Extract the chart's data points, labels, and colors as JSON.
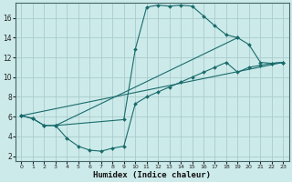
{
  "xlabel": "Humidex (Indice chaleur)",
  "bg_color": "#cceaea",
  "grid_color": "#aacccc",
  "line_color": "#1a6b6b",
  "xlim": [
    -0.5,
    23.5
  ],
  "ylim": [
    1.5,
    17.5
  ],
  "xticks": [
    0,
    1,
    2,
    3,
    4,
    5,
    6,
    7,
    8,
    9,
    10,
    11,
    12,
    13,
    14,
    15,
    16,
    17,
    18,
    19,
    20,
    21,
    22,
    23
  ],
  "yticks": [
    2,
    4,
    6,
    8,
    10,
    12,
    14,
    16
  ],
  "series": [
    {
      "x": [
        0,
        1,
        2,
        3,
        4,
        5,
        6,
        7,
        8,
        9,
        10,
        11,
        12,
        13,
        14,
        15,
        16,
        17,
        18,
        19,
        20,
        21,
        22,
        23
      ],
      "y": [
        6.1,
        5.8,
        5.1,
        5.1,
        3.8,
        3.0,
        2.6,
        2.5,
        2.8,
        3.0,
        7.3,
        8.0,
        8.5,
        9.0,
        9.5,
        10.0,
        10.5,
        11.0,
        11.5,
        10.5,
        11.0,
        11.2,
        11.4,
        11.5
      ]
    },
    {
      "x": [
        0,
        1,
        2,
        3,
        9,
        10,
        11,
        12,
        13,
        14,
        15,
        16,
        17,
        18,
        19,
        20,
        21,
        22,
        23
      ],
      "y": [
        6.1,
        5.8,
        5.1,
        5.1,
        5.7,
        12.8,
        17.1,
        17.3,
        17.2,
        17.3,
        17.2,
        16.2,
        15.2,
        14.3,
        14.0,
        13.3,
        11.5,
        11.4,
        11.5
      ]
    },
    {
      "x": [
        0,
        23
      ],
      "y": [
        6.1,
        11.5
      ]
    },
    {
      "x": [
        3,
        19
      ],
      "y": [
        5.1,
        14.0
      ]
    }
  ]
}
